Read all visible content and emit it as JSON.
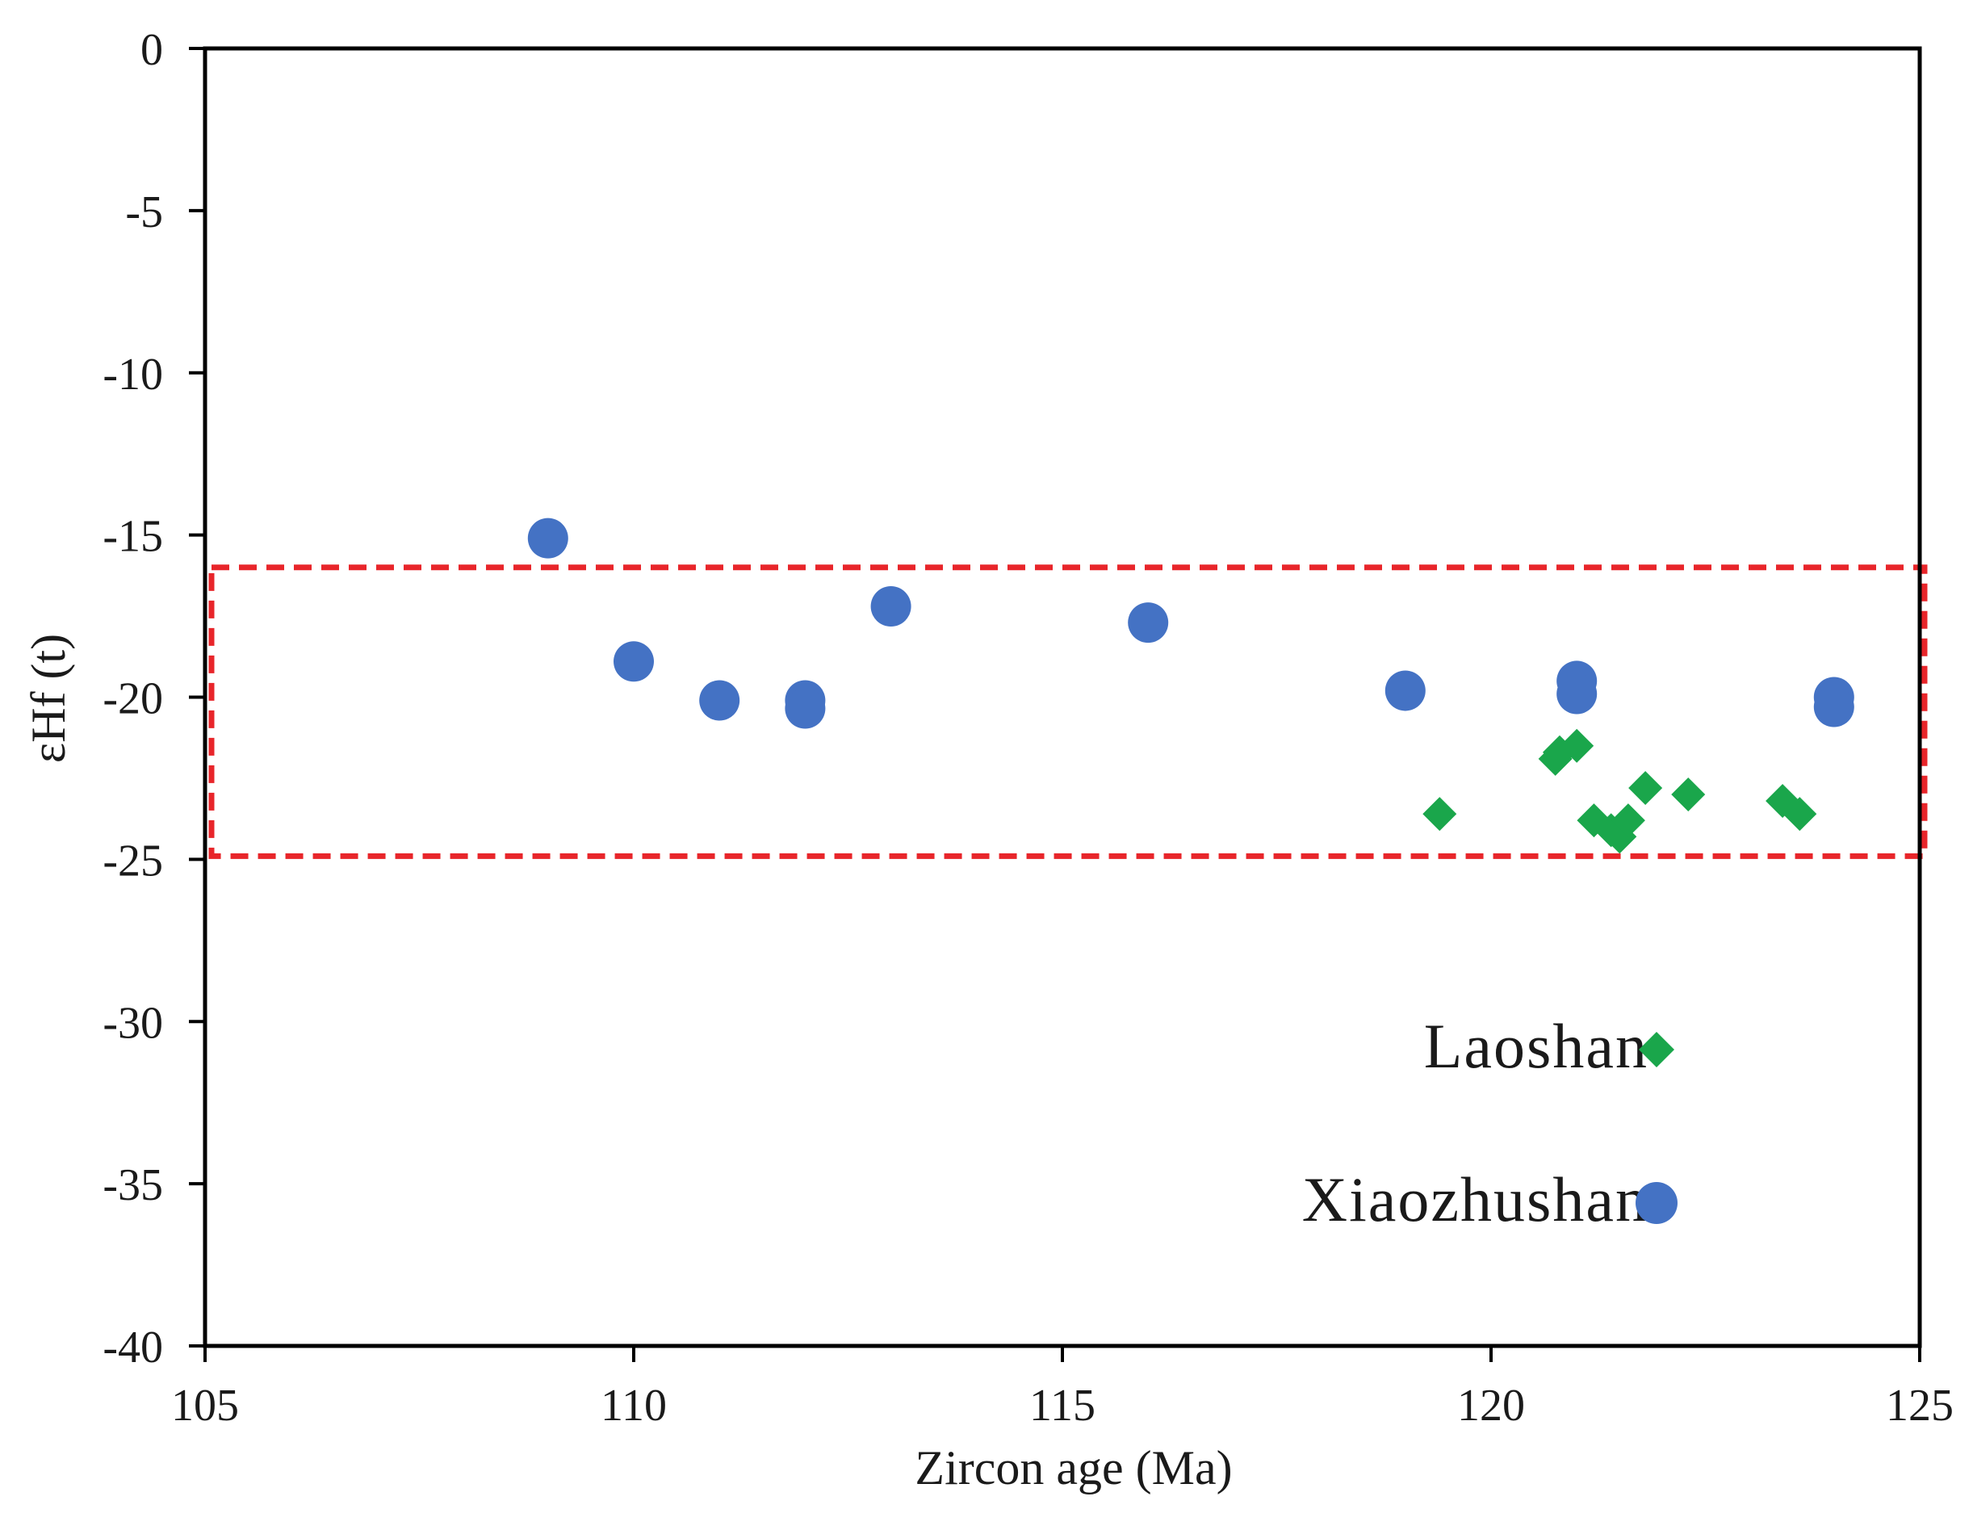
{
  "chart_data": {
    "type": "scatter",
    "title": "",
    "xlabel": "Zircon age (Ma)",
    "ylabel": "εHf (t)",
    "xlim": [
      105,
      125
    ],
    "ylim": [
      -40,
      0
    ],
    "x_ticks": [
      105,
      110,
      115,
      120,
      125
    ],
    "y_ticks": [
      0,
      -5,
      -10,
      -15,
      -20,
      -25,
      -30,
      -35,
      -40
    ],
    "grid": false,
    "legend_position": "bottom-right",
    "highlight_range": {
      "ymin": -24.9,
      "ymax": -16,
      "style": "red dashed box",
      "color": "#e8252a"
    },
    "series": [
      {
        "name": "Laoshan",
        "marker": "diamond",
        "color": "#1aa64b",
        "points": [
          {
            "x": 119.4,
            "y": -23.6
          },
          {
            "x": 120.75,
            "y": -21.9
          },
          {
            "x": 120.8,
            "y": -21.7
          },
          {
            "x": 121.0,
            "y": -21.5
          },
          {
            "x": 121.2,
            "y": -23.8
          },
          {
            "x": 121.4,
            "y": -24.1
          },
          {
            "x": 121.5,
            "y": -24.3
          },
          {
            "x": 121.6,
            "y": -23.8
          },
          {
            "x": 121.8,
            "y": -22.8
          },
          {
            "x": 122.3,
            "y": -23.0
          },
          {
            "x": 123.4,
            "y": -23.2
          },
          {
            "x": 123.6,
            "y": -23.6
          }
        ]
      },
      {
        "name": "Xiaozhushan",
        "marker": "circle",
        "color": "#4472c4",
        "points": [
          {
            "x": 109.0,
            "y": -15.1
          },
          {
            "x": 110.0,
            "y": -18.9
          },
          {
            "x": 111.0,
            "y": -20.1
          },
          {
            "x": 112.0,
            "y": -20.1
          },
          {
            "x": 112.0,
            "y": -20.35
          },
          {
            "x": 113.0,
            "y": -17.2
          },
          {
            "x": 116.0,
            "y": -17.7
          },
          {
            "x": 119.0,
            "y": -19.8
          },
          {
            "x": 121.0,
            "y": -19.5
          },
          {
            "x": 121.0,
            "y": -19.9
          },
          {
            "x": 124.0,
            "y": -20.0
          },
          {
            "x": 124.0,
            "y": -20.3
          }
        ]
      }
    ]
  }
}
